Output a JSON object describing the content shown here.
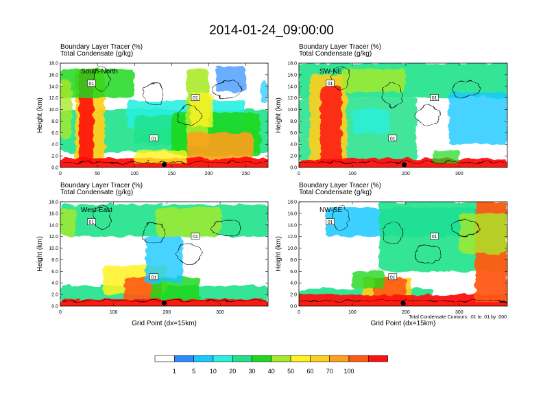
{
  "figure": {
    "title": "2014-01-24_09:00:00",
    "contour_note": "Total Condensate Contours: .01 to .01 by .000",
    "x_axis_label": "Grid Point (dx=15km)"
  },
  "chart_data": {
    "type": "heatmap",
    "title": "2014-01-24_09:00:00",
    "field_label": "Boundary Layer Tracer   (%)",
    "contour_label": "Total Condensate   (g/kg)",
    "ylabel": "Height (km)",
    "xlabel": "Grid Point (dx=15km)",
    "ylim": [
      0,
      18
    ],
    "y_ticks": [
      "0.0",
      "2.0",
      "4.0",
      "6.0",
      "8.0",
      "10.0",
      "12.0",
      "14.0",
      "16.0",
      "18.0"
    ],
    "marker_label": "01",
    "panels": [
      {
        "name": "South-North",
        "xlim": [
          0,
          280
        ],
        "x_ticks": [
          0,
          50,
          100,
          150,
          200,
          250
        ],
        "marker_x": 140,
        "show_xlabel": false
      },
      {
        "name": "SW-NE",
        "xlim": [
          0,
          390
        ],
        "x_ticks": [
          0,
          100,
          200,
          300
        ],
        "marker_x": 197,
        "show_xlabel": false
      },
      {
        "name": "West-East",
        "xlim": [
          0,
          390
        ],
        "x_ticks": [
          0,
          100,
          200,
          300
        ],
        "marker_x": 195,
        "show_xlabel": true
      },
      {
        "name": "NW-SE",
        "xlim": [
          0,
          390
        ],
        "x_ticks": [
          0,
          100,
          200,
          300
        ],
        "marker_x": 195,
        "show_xlabel": true
      }
    ],
    "colorbar": {
      "levels": [
        "1",
        "5",
        "10",
        "20",
        "30",
        "40",
        "50",
        "60",
        "70",
        "100"
      ],
      "colors": [
        "#ffffff",
        "#2b8cff",
        "#17c8ff",
        "#2af0e0",
        "#1ee28a",
        "#1ed81e",
        "#a8ea2a",
        "#fff21e",
        "#ffcf1c",
        "#ffa01a",
        "#ff5a14",
        "#ff1010"
      ]
    }
  }
}
